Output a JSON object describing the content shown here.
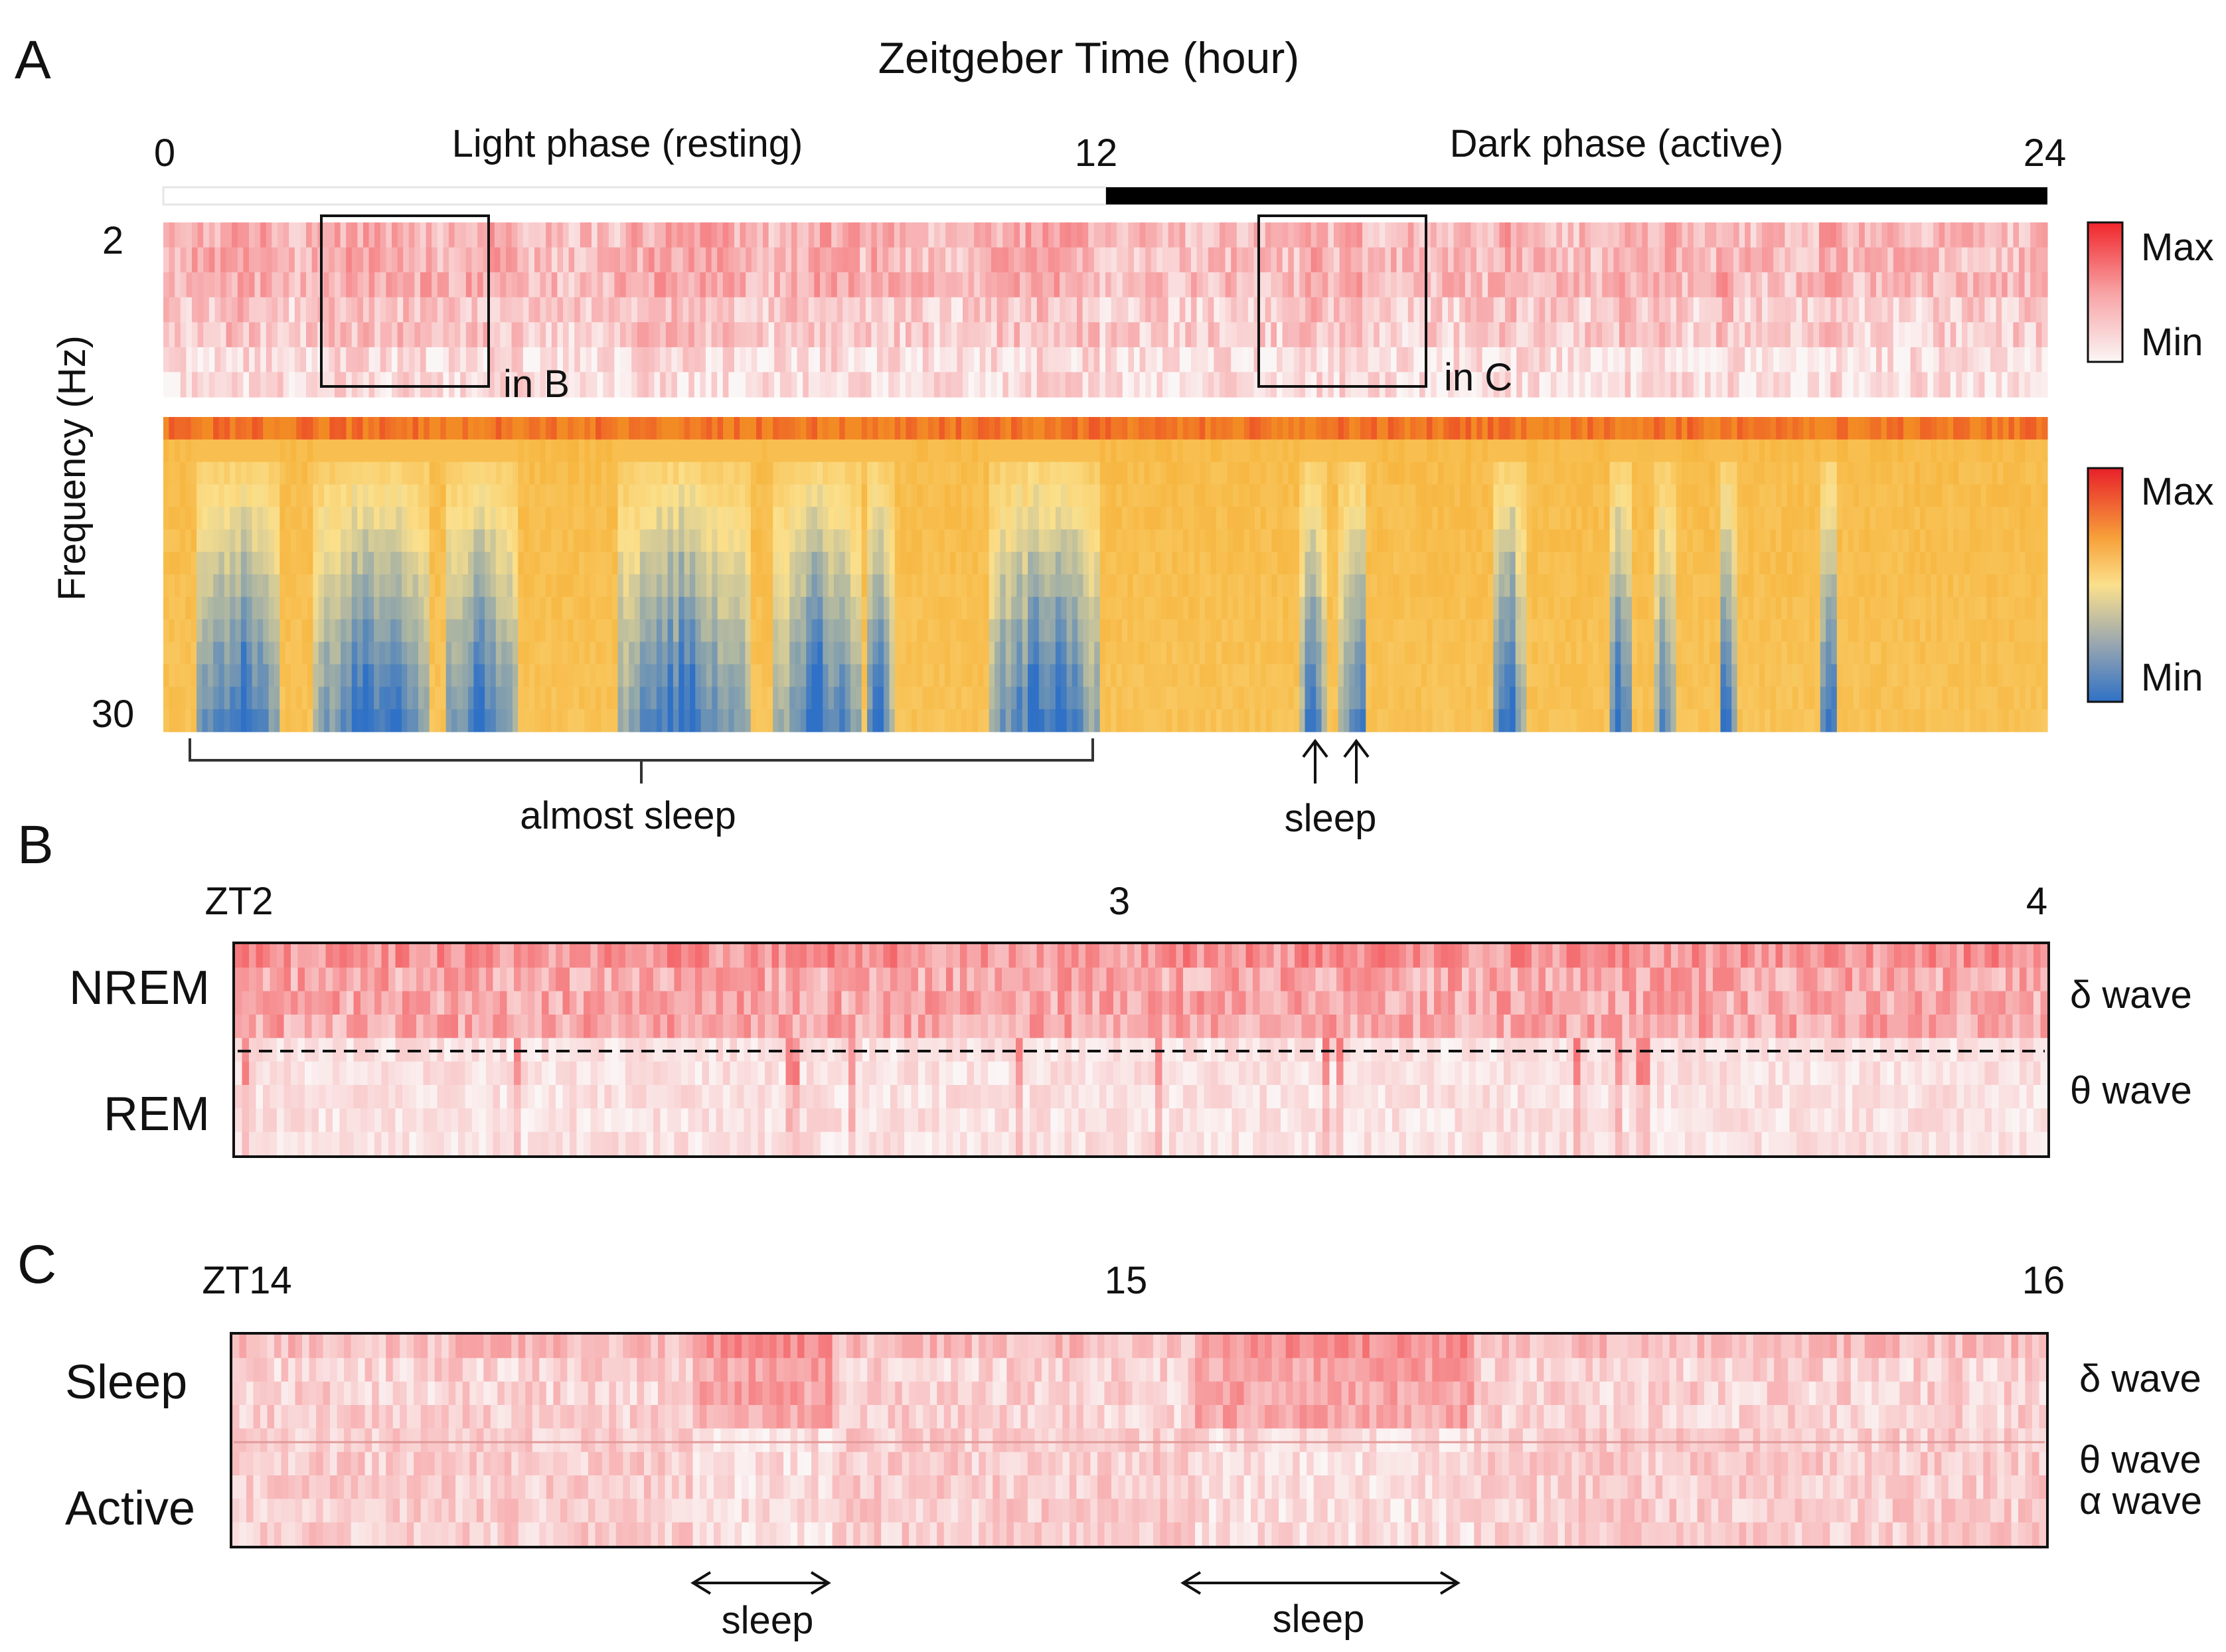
{
  "colors": {
    "red_max": "#f0262b",
    "red_min": "#fbf6f6",
    "blue_min": "#2f71c6",
    "yellow_mid": "#fbe08c",
    "orange": "#f5a623",
    "red_top": "#e8202a",
    "ink": "#111111"
  },
  "chart_data": [
    {
      "id": "A",
      "type": "heatmap",
      "panel_label": "A",
      "title": "Zeitgeber Time (hour)",
      "ylabel": "Frequency (Hz)",
      "x_ticks": [
        "0",
        "12",
        "24"
      ],
      "xlim": [
        0,
        24
      ],
      "y_ticks": [
        "2",
        "30"
      ],
      "ylim": [
        2,
        30
      ],
      "phases": [
        {
          "label": "Light phase (resting)",
          "start": 0,
          "end": 12,
          "bar_color": "#ffffff"
        },
        {
          "label": "Dark phase (active)",
          "start": 12,
          "end": 24,
          "bar_color": "#000000"
        }
      ],
      "inset_boxes": [
        {
          "label": "in B",
          "start": 2,
          "end": 4
        },
        {
          "label": "in C",
          "start": 14,
          "end": 16
        }
      ],
      "colorbars": [
        {
          "id": "red-scale",
          "max_label": "Max",
          "min_label": "Min"
        },
        {
          "id": "blue-yellow-red-scale",
          "max_label": "Max",
          "min_label": "Min"
        }
      ],
      "annotations": {
        "bracket_label": "almost sleep",
        "bracket_range": [
          0.3,
          11.8
        ],
        "arrow_label": "sleep",
        "arrow_times": [
          14.65,
          15.2
        ]
      },
      "sleep_bouts_hours": [
        [
          0.4,
          1.5
        ],
        [
          1.9,
          3.4
        ],
        [
          3.6,
          4.5
        ],
        [
          5.8,
          7.5
        ],
        [
          7.8,
          8.9
        ],
        [
          8.95,
          9.3
        ],
        [
          10.5,
          11.95
        ],
        [
          14.5,
          14.8
        ],
        [
          15.0,
          15.35
        ],
        [
          16.95,
          17.35
        ],
        [
          18.4,
          18.7
        ],
        [
          19.0,
          19.25
        ],
        [
          19.8,
          20.05
        ],
        [
          21.1,
          21.35
        ]
      ]
    },
    {
      "id": "B",
      "type": "heatmap",
      "panel_label": "B",
      "x_ticks": [
        "ZT2",
        "3",
        "4"
      ],
      "xlim": [
        2,
        4
      ],
      "row_labels": [
        "NREM",
        "REM"
      ],
      "band_labels": [
        "δ wave",
        "θ wave"
      ],
      "divider": "dashed"
    },
    {
      "id": "C",
      "type": "heatmap",
      "panel_label": "C",
      "x_ticks": [
        "ZT14",
        "15",
        "16"
      ],
      "xlim": [
        14,
        16
      ],
      "row_labels": [
        "Sleep",
        "Active"
      ],
      "band_labels": [
        "δ wave",
        "θ wave",
        "α wave"
      ],
      "divider": "solid-faint",
      "annotations": {
        "sleep_label": "sleep",
        "sleep_ranges": [
          [
            14.51,
            14.66
          ],
          [
            15.06,
            15.37
          ]
        ]
      }
    }
  ]
}
